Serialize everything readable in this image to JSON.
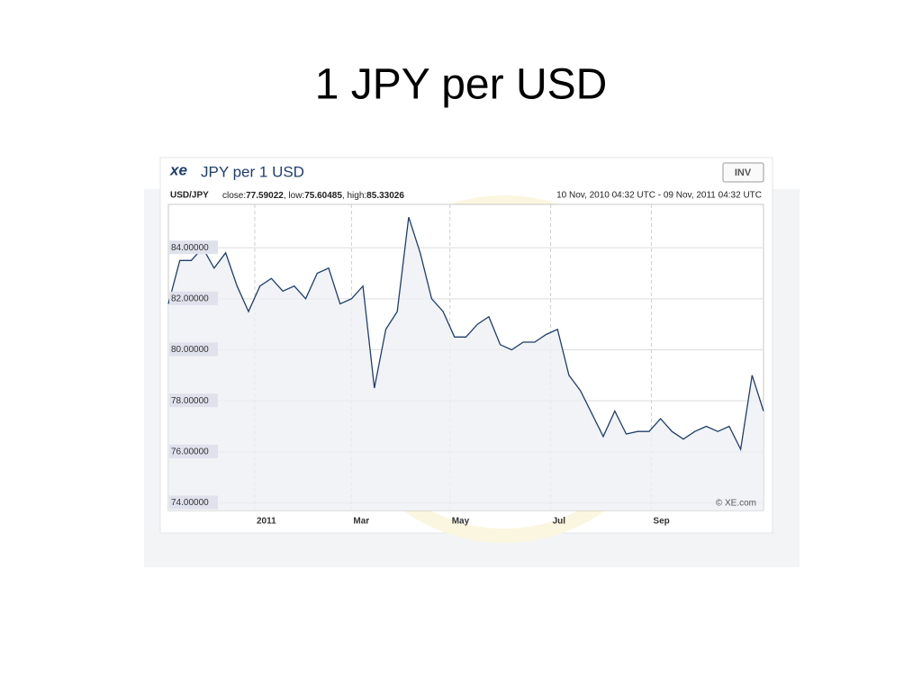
{
  "slide_title": "1 JPY per USD",
  "chart_data": {
    "type": "line",
    "logo": "xe",
    "title": "JPY per 1 USD",
    "button": "INV",
    "pair": "USD/JPY",
    "stats": [
      {
        "label": "close:",
        "value": 77.59022
      },
      {
        "label": "low:",
        "value": 75.60485
      },
      {
        "label": "high:",
        "value": 85.33026
      }
    ],
    "date_range": "10 Nov, 2010 04:32 UTC - 09 Nov, 2011 04:32 UTC",
    "credit": "© XE.com",
    "color": "#1f3f6e",
    "grid": true,
    "values": [
      81.8,
      83.5,
      83.5,
      84.0,
      83.2,
      83.8,
      82.5,
      81.5,
      82.5,
      82.8,
      82.3,
      82.5,
      82.0,
      83.0,
      83.2,
      81.8,
      82.0,
      82.5,
      78.5,
      80.8,
      81.5,
      85.2,
      83.8,
      82.0,
      81.5,
      80.5,
      80.5,
      81.0,
      81.3,
      80.2,
      80.0,
      80.3,
      80.3,
      80.6,
      80.8,
      79.0,
      78.4,
      77.5,
      76.6,
      77.6,
      76.7,
      76.8,
      76.8,
      77.3,
      76.8,
      76.5,
      76.8,
      77.0,
      76.8,
      77.0,
      76.1,
      79.0,
      77.6
    ],
    "xlim": [
      0,
      52
    ],
    "xticks": [
      {
        "value": 7.55,
        "label": "2011"
      },
      {
        "value": 16.0,
        "label": "Mar"
      },
      {
        "value": 24.6,
        "label": "May"
      },
      {
        "value": 33.4,
        "label": "Jul"
      },
      {
        "value": 42.2,
        "label": "Sep"
      }
    ],
    "ylim": [
      73.7,
      85.7
    ],
    "yticks": [
      {
        "value": 74,
        "label": "74.00000"
      },
      {
        "value": 76,
        "label": "76.00000"
      },
      {
        "value": 78,
        "label": "78.00000"
      },
      {
        "value": 80,
        "label": "80.00000"
      },
      {
        "value": 82,
        "label": "82.00000"
      },
      {
        "value": 84,
        "label": "84.00000"
      }
    ]
  }
}
